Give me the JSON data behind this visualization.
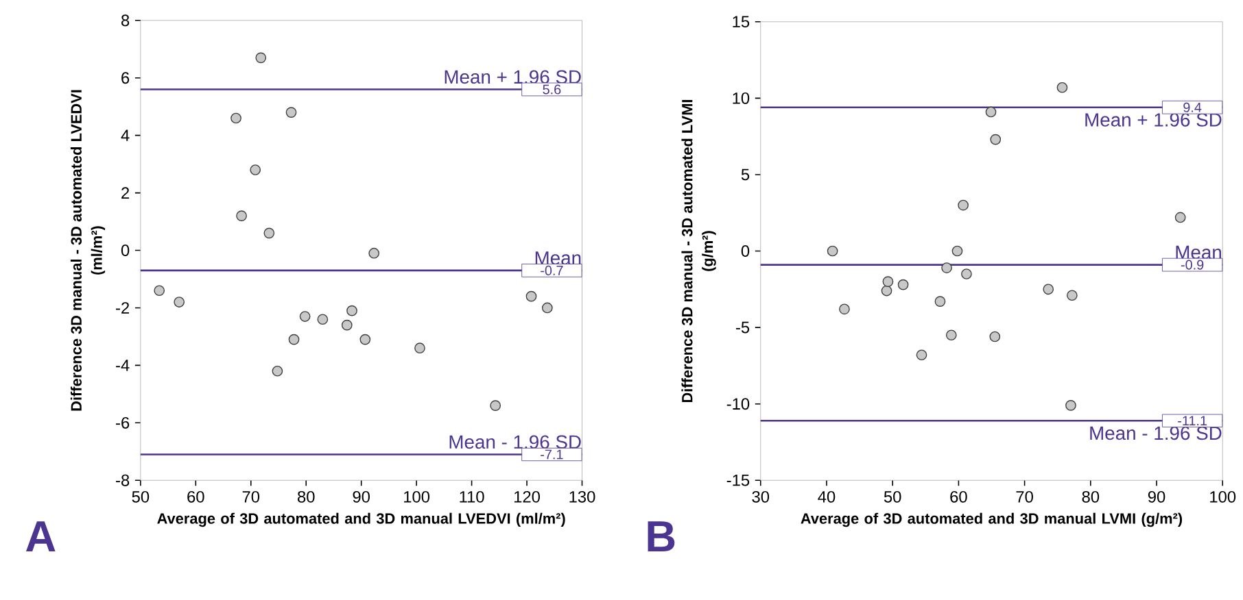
{
  "chart_data": [
    {
      "type": "scatter",
      "xlabel": "Average of 3D automated and 3D manual LVEDVI (ml/m²)",
      "ylabel": "Difference 3D manual - 3D automated LVEDVI (ml/m²)",
      "xlim": [
        50,
        130
      ],
      "ylim": [
        -8,
        8
      ],
      "xticks": [
        50,
        60,
        70,
        80,
        90,
        100,
        110,
        120,
        130
      ],
      "yticks": [
        -8,
        -6,
        -4,
        -2,
        0,
        2,
        4,
        6,
        8
      ],
      "marker": "circle",
      "series": [
        {
          "color": "#c8c8c8",
          "x": [
            71.8,
            67.3,
            77.3,
            70.8,
            68.3,
            73.3,
            92.3,
            53.4,
            57.0,
            79.8,
            83.0,
            88.3,
            87.4,
            77.8,
            90.7,
            100.6,
            74.8,
            120.8,
            123.7,
            114.3
          ],
          "values": [
            6.7,
            4.6,
            4.8,
            2.8,
            1.2,
            0.6,
            -0.1,
            -1.4,
            -1.8,
            -2.3,
            -2.4,
            -2.1,
            -2.6,
            -3.1,
            -3.1,
            -3.4,
            -4.2,
            -1.6,
            -2.0,
            -5.4
          ]
        }
      ],
      "ref_lines": [
        {
          "axis": "y",
          "value": 5.6,
          "label": "Mean + 1.96 SD",
          "color": "#4b3590"
        },
        {
          "axis": "y",
          "value": -0.7,
          "label": "Mean",
          "color": "#4b3590"
        },
        {
          "axis": "y",
          "value": -7.1,
          "label": "Mean - 1.96 SD",
          "color": "#4b3590"
        }
      ],
      "annotations": [
        "A",
        "5.6",
        "-0.7",
        "-7.1"
      ]
    },
    {
      "type": "scatter",
      "xlabel": "Average of 3D automated and 3D manual LVMI (g/m²)",
      "ylabel": "Difference 3D manual - 3D automated LVMI (g/m²)",
      "xlim": [
        30,
        100
      ],
      "ylim": [
        -15,
        15
      ],
      "xticks": [
        30,
        40,
        50,
        60,
        70,
        80,
        90,
        100
      ],
      "yticks": [
        -15,
        -10,
        -5,
        0,
        5,
        10,
        15
      ],
      "marker": "circle",
      "series": [
        {
          "color": "#c8c8c8",
          "x": [
            40.9,
            42.7,
            49.1,
            49.3,
            51.6,
            57.2,
            54.4,
            58.9,
            58.2,
            59.8,
            60.7,
            61.2,
            64.9,
            65.6,
            65.5,
            73.6,
            77.2,
            75.7,
            77.0,
            93.6
          ],
          "values": [
            0,
            -3.8,
            -2.6,
            -2.0,
            -2.2,
            -3.3,
            -6.8,
            -5.5,
            -1.1,
            0,
            3.0,
            -1.5,
            9.1,
            7.3,
            -5.6,
            -2.5,
            -2.9,
            10.7,
            -10.1,
            2.2
          ]
        }
      ],
      "ref_lines": [
        {
          "axis": "y",
          "value": 9.4,
          "label": "Mean + 1.96 SD",
          "color": "#4b3590"
        },
        {
          "axis": "y",
          "value": -0.9,
          "label": "Mean",
          "color": "#4b3590"
        },
        {
          "axis": "y",
          "value": -11.1,
          "label": "Mean - 1.96 SD",
          "color": "#4b3590"
        }
      ],
      "annotations": [
        "B",
        "9.4",
        "-0.9",
        "-11.1"
      ]
    }
  ]
}
